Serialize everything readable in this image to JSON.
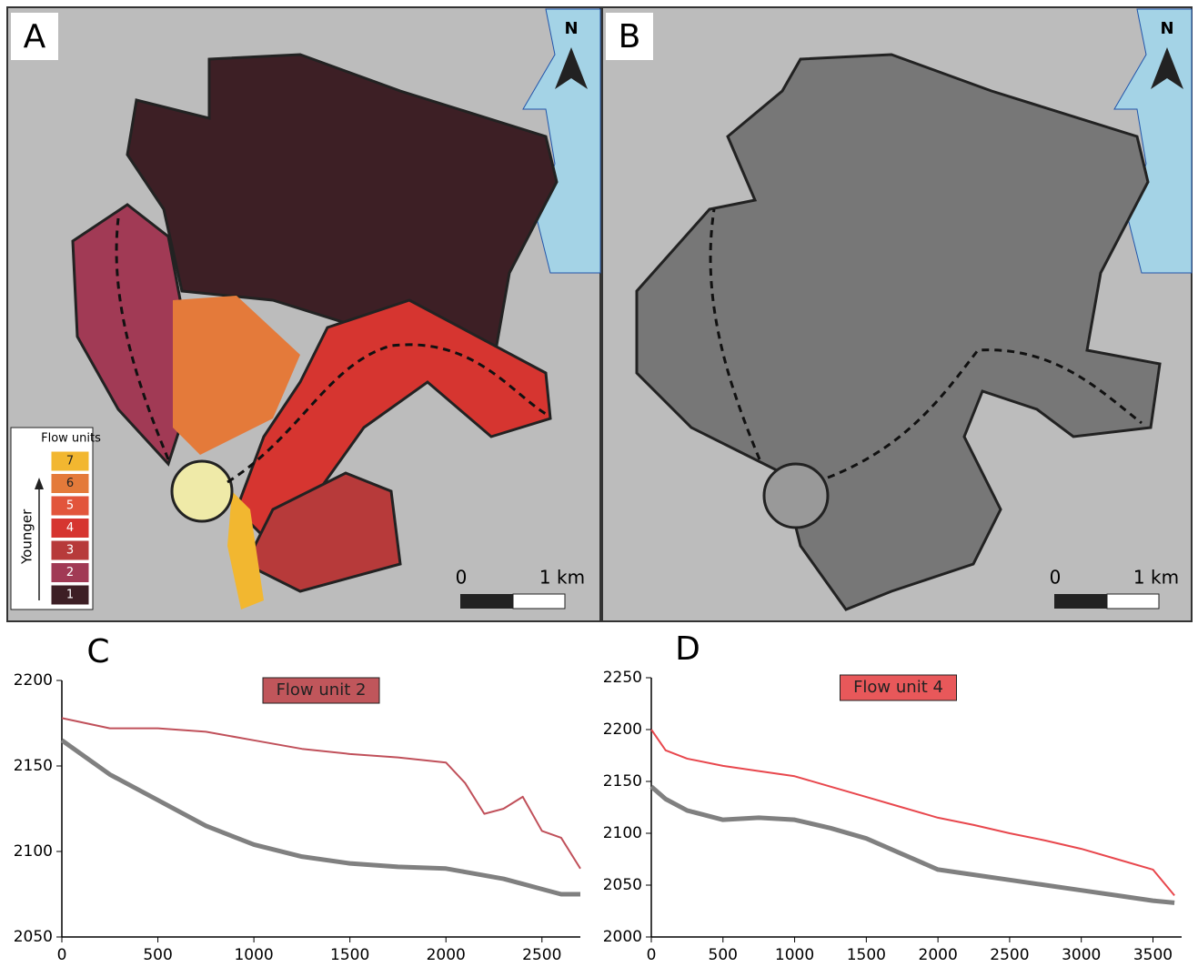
{
  "maps": [
    {
      "label": "A",
      "north": "N",
      "scale_start": "0",
      "scale_end": "1 km",
      "legend": {
        "title": "Flow units",
        "arrow_label": "Younger",
        "items": [
          {
            "label": "7",
            "color": "#f2b730"
          },
          {
            "label": "6",
            "color": "#e47a3a"
          },
          {
            "label": "5",
            "color": "#e2553b"
          },
          {
            "label": "4",
            "color": "#d63530"
          },
          {
            "label": "3",
            "color": "#b73a3a"
          },
          {
            "label": "2",
            "color": "#a13a55"
          },
          {
            "label": "1",
            "color": "#3d1f25"
          }
        ]
      }
    },
    {
      "label": "B",
      "north": "N",
      "scale_start": "0",
      "scale_end": "1 km"
    }
  ],
  "chart_data": [
    {
      "type": "line",
      "panel": "C",
      "title": "Flow unit 2",
      "title_color": "#c0565b",
      "x": [
        0,
        250,
        500,
        750,
        1000,
        1250,
        1500,
        1750,
        2000,
        2100,
        2200,
        2300,
        2400,
        2500,
        2600,
        2700
      ],
      "series": [
        {
          "color": "#c0505a",
          "values": [
            2178,
            2172,
            2172,
            2170,
            2165,
            2160,
            2157,
            2155,
            2152,
            2140,
            2122,
            2125,
            2132,
            2112,
            2108,
            2090
          ]
        },
        {
          "color": "#808080",
          "values": [
            2165,
            2145,
            2130,
            2115,
            2104,
            2097,
            2093,
            2091,
            2090,
            2088,
            2086,
            2084,
            2081,
            2078,
            2075,
            2075
          ]
        }
      ],
      "xlim": [
        0,
        2700
      ],
      "xticks": [
        0,
        500,
        1000,
        1500,
        2000,
        2500
      ],
      "ylim": [
        2050,
        2200
      ],
      "yticks": [
        2050,
        2100,
        2150,
        2200
      ]
    },
    {
      "type": "line",
      "panel": "D",
      "title": "Flow unit 4",
      "title_color": "#e8585a",
      "x": [
        0,
        100,
        250,
        500,
        750,
        1000,
        1250,
        1500,
        1750,
        2000,
        2250,
        2500,
        2750,
        3000,
        3250,
        3500,
        3650
      ],
      "series": [
        {
          "color": "#e8474d",
          "values": [
            2200,
            2180,
            2172,
            2165,
            2160,
            2155,
            2145,
            2135,
            2125,
            2115,
            2108,
            2100,
            2093,
            2085,
            2075,
            2065,
            2040
          ]
        },
        {
          "color": "#808080",
          "values": [
            2145,
            2133,
            2122,
            2113,
            2115,
            2113,
            2105,
            2095,
            2080,
            2065,
            2060,
            2055,
            2050,
            2045,
            2040,
            2035,
            2033
          ]
        }
      ],
      "xlim": [
        0,
        3700
      ],
      "xticks": [
        0,
        500,
        1000,
        1500,
        2000,
        2500,
        3000,
        3500
      ],
      "ylim": [
        2000,
        2250
      ],
      "yticks": [
        2000,
        2050,
        2100,
        2150,
        2200,
        2250
      ]
    }
  ]
}
